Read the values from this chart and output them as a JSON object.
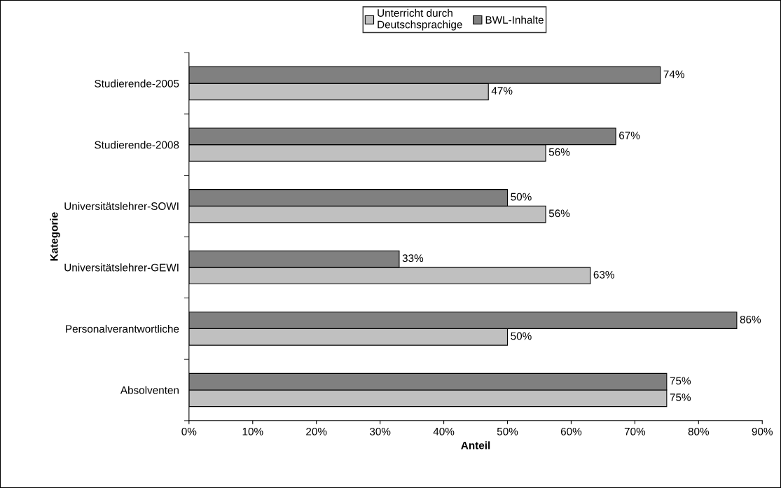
{
  "chart_data": {
    "type": "bar",
    "orientation": "horizontal",
    "xlabel": "Anteil",
    "ylabel": "Kategorie",
    "categories": [
      "Studierende-2005",
      "Studierende-2008",
      "Universitätslehrer-SOWI",
      "Universitätslehrer-GEWI",
      "Personalverantwortliche",
      "Absolventen"
    ],
    "series": [
      {
        "name": "Unterricht durch\nDeutschsprachige",
        "color": "#c0c0c0",
        "values": [
          47,
          56,
          56,
          63,
          50,
          75
        ],
        "value_labels": [
          "47%",
          "56%",
          "56%",
          "63%",
          "50%",
          "75%"
        ]
      },
      {
        "name": "BWL-Inhalte",
        "color": "#808080",
        "values": [
          74,
          67,
          50,
          33,
          86,
          75
        ],
        "value_labels": [
          "74%",
          "67%",
          "50%",
          "33%",
          "86%",
          "75%"
        ]
      }
    ],
    "xlim": [
      0,
      90
    ],
    "xticks": [
      {
        "value": 0,
        "label": "0%"
      },
      {
        "value": 10,
        "label": "10%"
      },
      {
        "value": 20,
        "label": "20%"
      },
      {
        "value": 30,
        "label": "30%"
      },
      {
        "value": 40,
        "label": "40%"
      },
      {
        "value": 50,
        "label": "50%"
      },
      {
        "value": 60,
        "label": "60%"
      },
      {
        "value": 70,
        "label": "70%"
      },
      {
        "value": 80,
        "label": "80%"
      },
      {
        "value": 90,
        "label": "90%"
      }
    ],
    "grid": false,
    "legend": "top"
  }
}
